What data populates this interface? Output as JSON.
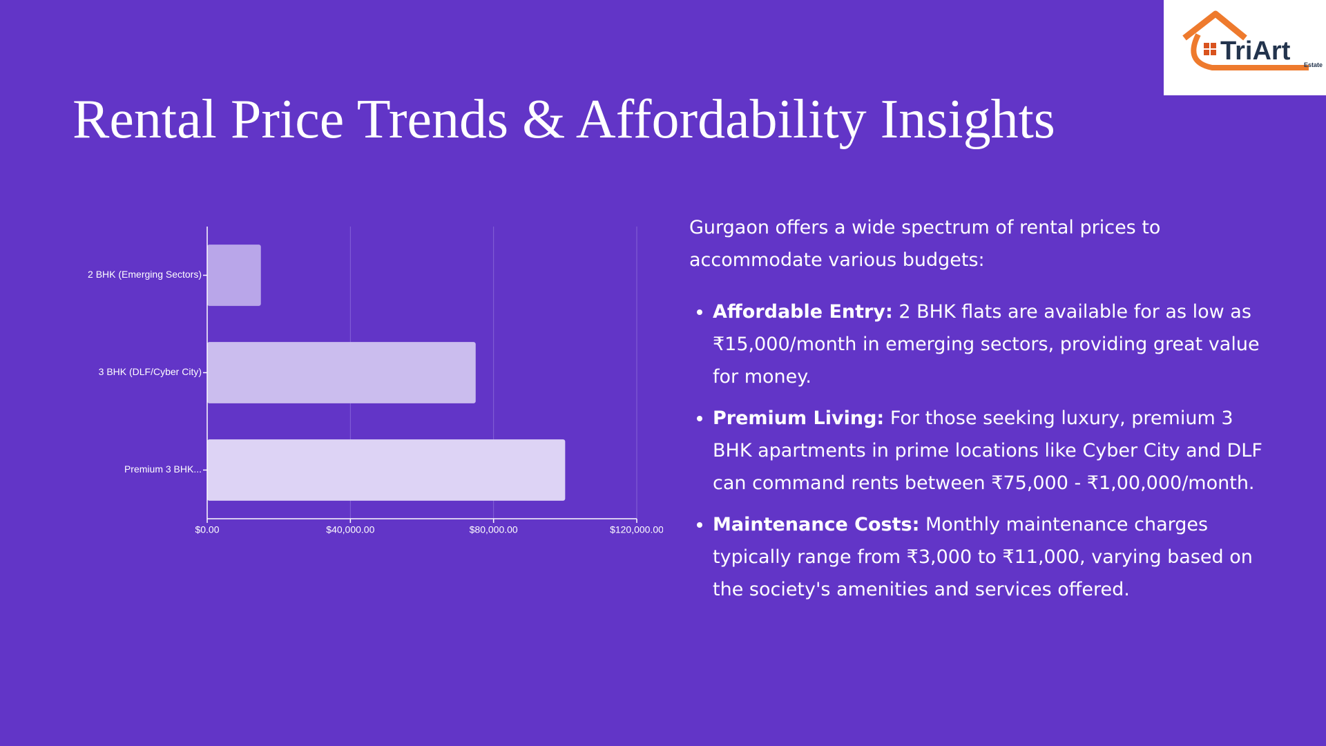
{
  "title": "Rental Price Trends & Affordability Insights",
  "logo": {
    "name": "TriArt",
    "tagline": "Estate"
  },
  "chart_data": {
    "type": "hbar",
    "categories": [
      "2 BHK (Emerging Sectors)",
      "3 BHK (DLF/Cyber City)",
      "Premium 3 BHK..."
    ],
    "values": [
      15000,
      75000,
      100000
    ],
    "colors": [
      "#b9a6e9",
      "#cbbdee",
      "#ddd3f5"
    ],
    "xlim": [
      0,
      120000
    ],
    "xticks": [
      {
        "value": 0,
        "label": "$0.00"
      },
      {
        "value": 40000,
        "label": "$40,000.00"
      },
      {
        "value": 80000,
        "label": "$80,000.00"
      },
      {
        "value": 120000,
        "label": "$120,000.00"
      }
    ],
    "grid": true
  },
  "intro": "Gurgaon offers a wide spectrum of rental prices to accommodate various budgets:",
  "bullets": [
    {
      "label": "Affordable Entry:",
      "text": "2 BHK flats are available for as low as ₹15,000/month in emerging sectors, providing great value for money."
    },
    {
      "label": "Premium Living:",
      "text": "For those seeking luxury, premium 3 BHK apartments in prime locations like Cyber City and DLF can command rents between ₹75,000 - ₹1,00,000/month."
    },
    {
      "label": "Maintenance Costs:",
      "text": "Monthly maintenance charges typically range from ₹3,000 to ₹11,000, varying based on the society's amenities and services offered."
    }
  ]
}
